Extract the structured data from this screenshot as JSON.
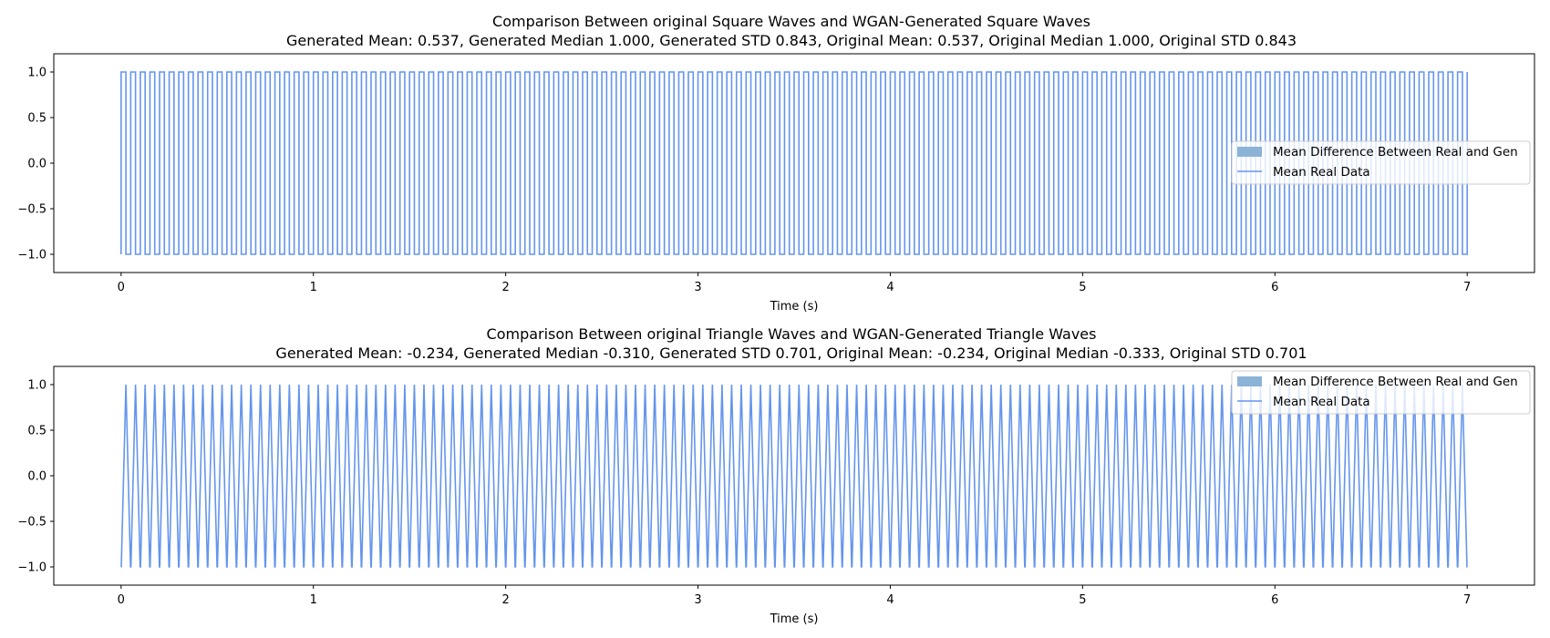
{
  "figure": {
    "background": "#ffffff"
  },
  "chart_data": [
    {
      "type": "line",
      "title": "Comparison Between original Square Waves and WGAN-Generated Square Waves",
      "subtitle": "Generated Mean: 0.537, Generated Median 1.000, Generated STD 0.843, Original Mean: 0.537, Original Median 1.000, Original STD 0.843",
      "xlabel": "Time (s)",
      "ylabel": "",
      "xlim": [
        -0.35,
        7.35
      ],
      "ylim": [
        -1.2,
        1.2
      ],
      "xticks": [
        0,
        1,
        2,
        3,
        4,
        5,
        6,
        7
      ],
      "xtick_labels": [
        "0",
        "1",
        "2",
        "3",
        "4",
        "5",
        "6",
        "7"
      ],
      "yticks": [
        -1.0,
        -0.5,
        0.0,
        0.5,
        1.0
      ],
      "ytick_labels": [
        "−1.0",
        "−0.5",
        "0.0",
        "0.5",
        "1.0"
      ],
      "grid": false,
      "legend_position": "center-right",
      "signal": {
        "shape": "square",
        "t_start": 0,
        "t_end": 7,
        "cycles": 140,
        "amplitude": 1.0
      },
      "series": [
        {
          "name": "Mean Difference Between Real and Gen",
          "kind": "fill",
          "color": "#8bb3d6"
        },
        {
          "name": "Mean Real Data",
          "kind": "line",
          "color": "#6495ed"
        }
      ]
    },
    {
      "type": "line",
      "title": "Comparison Between original Triangle Waves and WGAN-Generated Triangle Waves",
      "subtitle": "Generated Mean: -0.234, Generated Median -0.310, Generated STD 0.701, Original Mean: -0.234, Original Median -0.333, Original STD 0.701",
      "xlabel": "Time (s)",
      "ylabel": "",
      "xlim": [
        -0.35,
        7.35
      ],
      "ylim": [
        -1.2,
        1.2
      ],
      "xticks": [
        0,
        1,
        2,
        3,
        4,
        5,
        6,
        7
      ],
      "xtick_labels": [
        "0",
        "1",
        "2",
        "3",
        "4",
        "5",
        "6",
        "7"
      ],
      "yticks": [
        -1.0,
        -0.5,
        0.0,
        0.5,
        1.0
      ],
      "ytick_labels": [
        "−1.0",
        "−0.5",
        "0.0",
        "0.5",
        "1.0"
      ],
      "grid": false,
      "legend_position": "upper-right",
      "signal": {
        "shape": "triangle",
        "t_start": 0,
        "t_end": 7,
        "cycles": 140,
        "amplitude": 1.0
      },
      "series": [
        {
          "name": "Mean Difference Between Real and Gen",
          "kind": "fill",
          "color": "#8bb3d6"
        },
        {
          "name": "Mean Real Data",
          "kind": "line",
          "color": "#6495ed"
        }
      ]
    }
  ]
}
